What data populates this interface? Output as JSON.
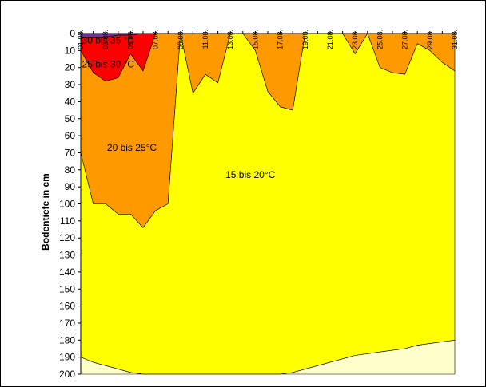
{
  "chart_data": {
    "type": "area",
    "ylabel": "Bodentiefe in cm",
    "ylim": [
      0,
      200
    ],
    "y_inverted": true,
    "y_ticks": [
      0,
      10,
      20,
      30,
      40,
      50,
      60,
      70,
      80,
      90,
      100,
      110,
      120,
      130,
      140,
      150,
      160,
      170,
      180,
      190,
      200
    ],
    "x_tick_labels": [
      "01.08.",
      "03.08.",
      "05.08.",
      "07.08.",
      "09.08.",
      "11.08.",
      "13.08.",
      "15.08.",
      "17.08.",
      "19.08.",
      "21.08.",
      "23.08.",
      "25.08.",
      "27.08.",
      "29.08.",
      "31.08."
    ],
    "x": [
      1,
      2,
      3,
      4,
      5,
      6,
      7,
      8,
      9,
      10,
      11,
      12,
      13,
      14,
      15,
      16,
      17,
      18,
      19,
      20,
      21,
      22,
      23,
      24,
      25,
      26,
      27,
      28,
      29,
      30,
      31
    ],
    "grid": false,
    "legend": "none",
    "zone_labels": [
      {
        "text": "30 bis 35 °C",
        "x": 3.2,
        "y": 4
      },
      {
        "text": "25 bis 30 °C",
        "x": 3.2,
        "y": 18
      },
      {
        "text": "20 bis 25°C",
        "x": 5.1,
        "y": 67
      },
      {
        "text": "15 bis 20°C",
        "x": 14.6,
        "y": 83
      }
    ],
    "series": [
      {
        "name": "30 bis 35 °C",
        "color": "#7030A0",
        "top": [
          0,
          0,
          0,
          0,
          0,
          0,
          0,
          0,
          0,
          0,
          0,
          0,
          0,
          0,
          0,
          0,
          0,
          0,
          0,
          0,
          0,
          0,
          0,
          0,
          0,
          0,
          0,
          0,
          0,
          0,
          0
        ],
        "bottom": [
          2,
          2,
          2,
          1,
          1,
          0,
          0,
          0,
          0,
          0,
          0,
          0,
          0,
          0,
          0,
          0,
          0,
          0,
          0,
          0,
          0,
          0,
          0,
          0,
          0,
          0,
          0,
          0,
          0,
          0,
          0
        ]
      },
      {
        "name": "25 bis 30 °C",
        "color": "#FF0000",
        "top": [
          2,
          2,
          2,
          1,
          1,
          0,
          0,
          0,
          0,
          0,
          0,
          0,
          0,
          0,
          0,
          0,
          0,
          0,
          0,
          0,
          0,
          0,
          0,
          0,
          0,
          0,
          0,
          0,
          0,
          0,
          0
        ],
        "bottom": [
          10,
          23,
          28,
          26,
          12,
          22,
          0,
          0,
          0,
          0,
          0,
          0,
          0,
          0,
          0,
          0,
          0,
          0,
          0,
          0,
          0,
          0,
          0,
          0,
          0,
          0,
          0,
          0,
          0,
          0,
          0
        ]
      },
      {
        "name": "20 bis 25°C",
        "color": "#FF9900",
        "top": [
          10,
          23,
          28,
          26,
          12,
          22,
          0,
          0,
          0,
          0,
          0,
          0,
          0,
          0,
          0,
          0,
          0,
          0,
          0,
          0,
          0,
          0,
          0,
          0,
          0,
          0,
          0,
          0,
          0,
          0,
          0
        ],
        "bottom": [
          70,
          100,
          100,
          106,
          106,
          114,
          104,
          100,
          0,
          35,
          24,
          29,
          0,
          0,
          10,
          34,
          43,
          45,
          0,
          0,
          0,
          0,
          12,
          0,
          20,
          23,
          24,
          6,
          10,
          17,
          22
        ]
      },
      {
        "name": "15 bis 20°C",
        "color": "#FFFF00",
        "top": [
          70,
          100,
          100,
          106,
          106,
          114,
          104,
          100,
          0,
          35,
          24,
          29,
          0,
          0,
          10,
          34,
          43,
          45,
          0,
          0,
          0,
          0,
          12,
          0,
          20,
          23,
          24,
          6,
          10,
          17,
          22
        ],
        "bottom": [
          190,
          193,
          195,
          197,
          199,
          200,
          200,
          200,
          200,
          200,
          200,
          200,
          200,
          200,
          200,
          200,
          200,
          199,
          197,
          195,
          193,
          191,
          189,
          188,
          187,
          186,
          185,
          183,
          182,
          181,
          180
        ]
      },
      {
        "name": "",
        "color": "#FFFFCC",
        "top": [
          190,
          193,
          195,
          197,
          199,
          200,
          200,
          200,
          200,
          200,
          200,
          200,
          200,
          200,
          200,
          200,
          200,
          199,
          197,
          195,
          193,
          191,
          189,
          188,
          187,
          186,
          185,
          183,
          182,
          181,
          180
        ],
        "bottom": [
          200,
          200,
          200,
          200,
          200,
          200,
          200,
          200,
          200,
          200,
          200,
          200,
          200,
          200,
          200,
          200,
          200,
          200,
          200,
          200,
          200,
          200,
          200,
          200,
          200,
          200,
          200,
          200,
          200,
          200,
          200
        ]
      }
    ]
  }
}
